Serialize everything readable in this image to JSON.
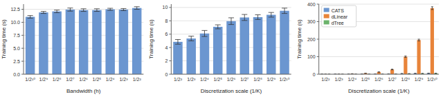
{
  "chart_data": [
    {
      "type": "bar",
      "xlabel": "Bandwidth (h)",
      "ylabel": "Training time (s)",
      "categories": [
        "1/2¹⁰",
        "1/2⁹",
        "1/2⁸",
        "1/2⁷",
        "1/2⁶",
        "1/2⁵",
        "1/2⁴",
        "1/2³",
        "1/2²"
      ],
      "values": [
        11.05,
        11.9,
        12.1,
        12.45,
        12.35,
        12.35,
        12.5,
        12.45,
        12.75
      ],
      "errors": [
        0.25,
        0.2,
        0.25,
        0.3,
        0.25,
        0.25,
        0.2,
        0.2,
        0.25
      ],
      "color": "#6b96d0",
      "ylim": [
        0,
        13.5
      ],
      "yticks": [
        {
          "value": 0,
          "label": "0.0"
        },
        2.5,
        {
          "value": 5,
          "label": "5.0"
        },
        7.5,
        {
          "value": 10,
          "label": "10.0"
        },
        12.5
      ],
      "grid": true
    },
    {
      "type": "bar",
      "xlabel": "Discretization scale (1/K)",
      "ylabel": "Training time (s)",
      "categories": [
        "1/2²",
        "1/2³",
        "1/2⁴",
        "1/2⁵",
        "1/2⁶",
        "1/2⁷",
        "1/2⁸",
        "1/2⁹",
        "1/2¹⁰"
      ],
      "values": [
        4.85,
        5.35,
        6.1,
        7.1,
        7.95,
        8.5,
        8.55,
        8.9,
        9.5
      ],
      "errors": [
        0.35,
        0.35,
        0.45,
        0.3,
        0.5,
        0.45,
        0.35,
        0.35,
        0.4
      ],
      "color": "#6b96d0",
      "ylim": [
        0,
        10.5
      ],
      "yticks": [
        0,
        2,
        4,
        6,
        8,
        10
      ],
      "grid": true
    },
    {
      "type": "bar",
      "xlabel": "Discretization scale (1/K)",
      "ylabel": "Training time (s)",
      "categories": [
        "1/2²",
        "1/2³",
        "1/2⁴",
        "1/2⁵",
        "1/2⁶",
        "1/2⁷",
        "1/2⁸",
        "1/2⁹",
        "1/2¹⁰"
      ],
      "series": [
        {
          "name": "CATS",
          "color": "#6b96d0",
          "values": [
            1.0,
            1.0,
            1.1,
            1.2,
            1.5,
            2.0,
            3.5,
            4.5,
            5.5
          ],
          "errors": [
            0.1,
            0.1,
            0.1,
            0.1,
            0.15,
            0.2,
            0.3,
            0.4,
            0.4
          ]
        },
        {
          "name": "dLinear",
          "color": "#e8843a",
          "values": [
            0.5,
            0.8,
            2.5,
            5.5,
            12.5,
            27.0,
            100.0,
            195.0,
            377.0
          ],
          "errors": [
            0.1,
            0.1,
            0.3,
            0.5,
            1.0,
            2.0,
            4.0,
            5.0,
            8.0
          ]
        },
        {
          "name": "dTree",
          "color": "#6bb36b",
          "values": [
            0.3,
            0.3,
            0.4,
            0.5,
            0.8,
            1.5,
            3.0,
            4.0,
            5.0
          ],
          "errors": [
            0.05,
            0.05,
            0.05,
            0.05,
            0.1,
            0.15,
            0.25,
            0.3,
            0.4
          ]
        }
      ],
      "ylim": [
        0,
        400
      ],
      "yticks": [
        0,
        100,
        200,
        300,
        400
      ],
      "grid": true,
      "legend": "upper left"
    }
  ]
}
